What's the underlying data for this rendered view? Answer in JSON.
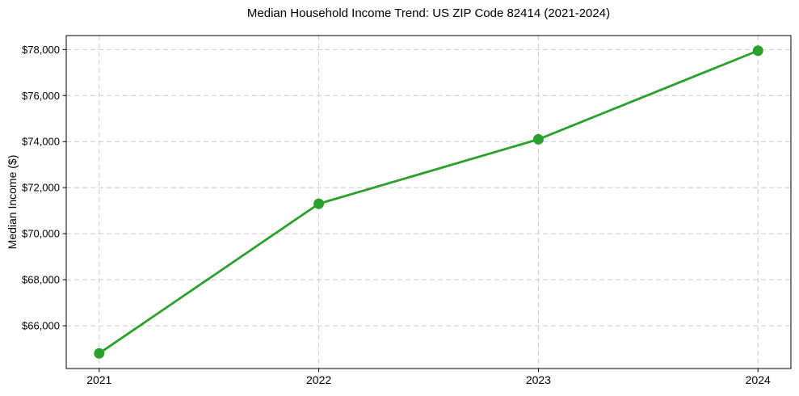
{
  "chart_data": {
    "type": "line",
    "title": "Median Household Income Trend: US ZIP Code 82414 (2021-2024)",
    "xlabel": "",
    "ylabel": "Median Income ($)",
    "x": [
      2021,
      2022,
      2023,
      2024
    ],
    "x_tick_labels": [
      "2021",
      "2022",
      "2023",
      "2024"
    ],
    "values": [
      64800,
      71300,
      74100,
      77950
    ],
    "y_ticks": [
      66000,
      68000,
      70000,
      72000,
      74000,
      76000,
      78000
    ],
    "y_tick_labels": [
      "$66,000",
      "$68,000",
      "$70,000",
      "$72,000",
      "$74,000",
      "$76,000",
      "$78,000"
    ],
    "xlim": [
      2020.85,
      2024.15
    ],
    "ylim": [
      64142,
      78608
    ],
    "grid": true,
    "grid_color": "#cccccc",
    "grid_style": "dashed",
    "legend_position": "none",
    "line_color": "#2ca02c",
    "line_width": 2.8,
    "marker": "circle",
    "marker_radius": 6.5,
    "axis_color": "#000000",
    "background_color": "#ffffff"
  }
}
